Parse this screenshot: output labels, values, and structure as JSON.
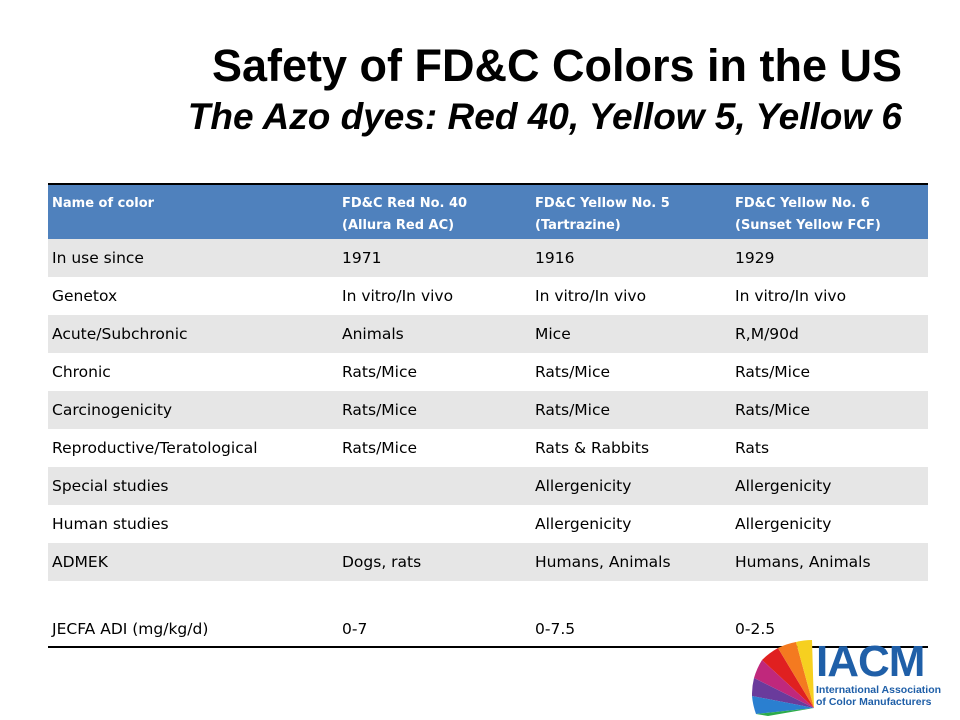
{
  "title": "Safety of FD&C Colors in the US",
  "subtitle": "The Azo dyes: Red 40, Yellow 5, Yellow 6",
  "table": {
    "headers": [
      {
        "line1": "Name of color",
        "line2": ""
      },
      {
        "line1": "FD&C Red No. 40",
        "line2": "(Allura Red AC)"
      },
      {
        "line1": "FD&C Yellow No. 5",
        "line2": "(Tartrazine)"
      },
      {
        "line1": "FD&C Yellow No. 6",
        "line2": "(Sunset Yellow FCF)"
      }
    ],
    "rows": [
      [
        "In use since",
        "1971",
        "1916",
        "1929"
      ],
      [
        "Genetox",
        "In vitro/In vivo",
        "In vitro/In vivo",
        "In vitro/In vivo"
      ],
      [
        "Acute/Subchronic",
        "Animals",
        "Mice",
        "R,M/90d"
      ],
      [
        "Chronic",
        "Rats/Mice",
        "Rats/Mice",
        "Rats/Mice"
      ],
      [
        "Carcinogenicity",
        "Rats/Mice",
        "Rats/Mice",
        "Rats/Mice"
      ],
      [
        "Reproductive/Teratological",
        "Rats/Mice",
        "Rats & Rabbits",
        "Rats"
      ],
      [
        "Special studies",
        "",
        "Allergenicity",
        "Allergenicity"
      ],
      [
        "Human studies",
        "",
        "Allergenicity",
        "Allergenicity"
      ],
      [
        "ADMEK",
        "Dogs, rats",
        "Humans, Animals",
        "Humans, Animals"
      ],
      [
        "JECFA ADI (mg/kg/d)",
        "0-7",
        "0-7.5",
        "0-2.5"
      ]
    ]
  },
  "logo": {
    "name": "IACM",
    "line1": "International Association",
    "line2": "of Color Manufacturers"
  },
  "colors": {
    "header_bg": "#4f81bd",
    "row_shade": "#e6e6e6",
    "logo_blue": "#1f5fa8"
  }
}
